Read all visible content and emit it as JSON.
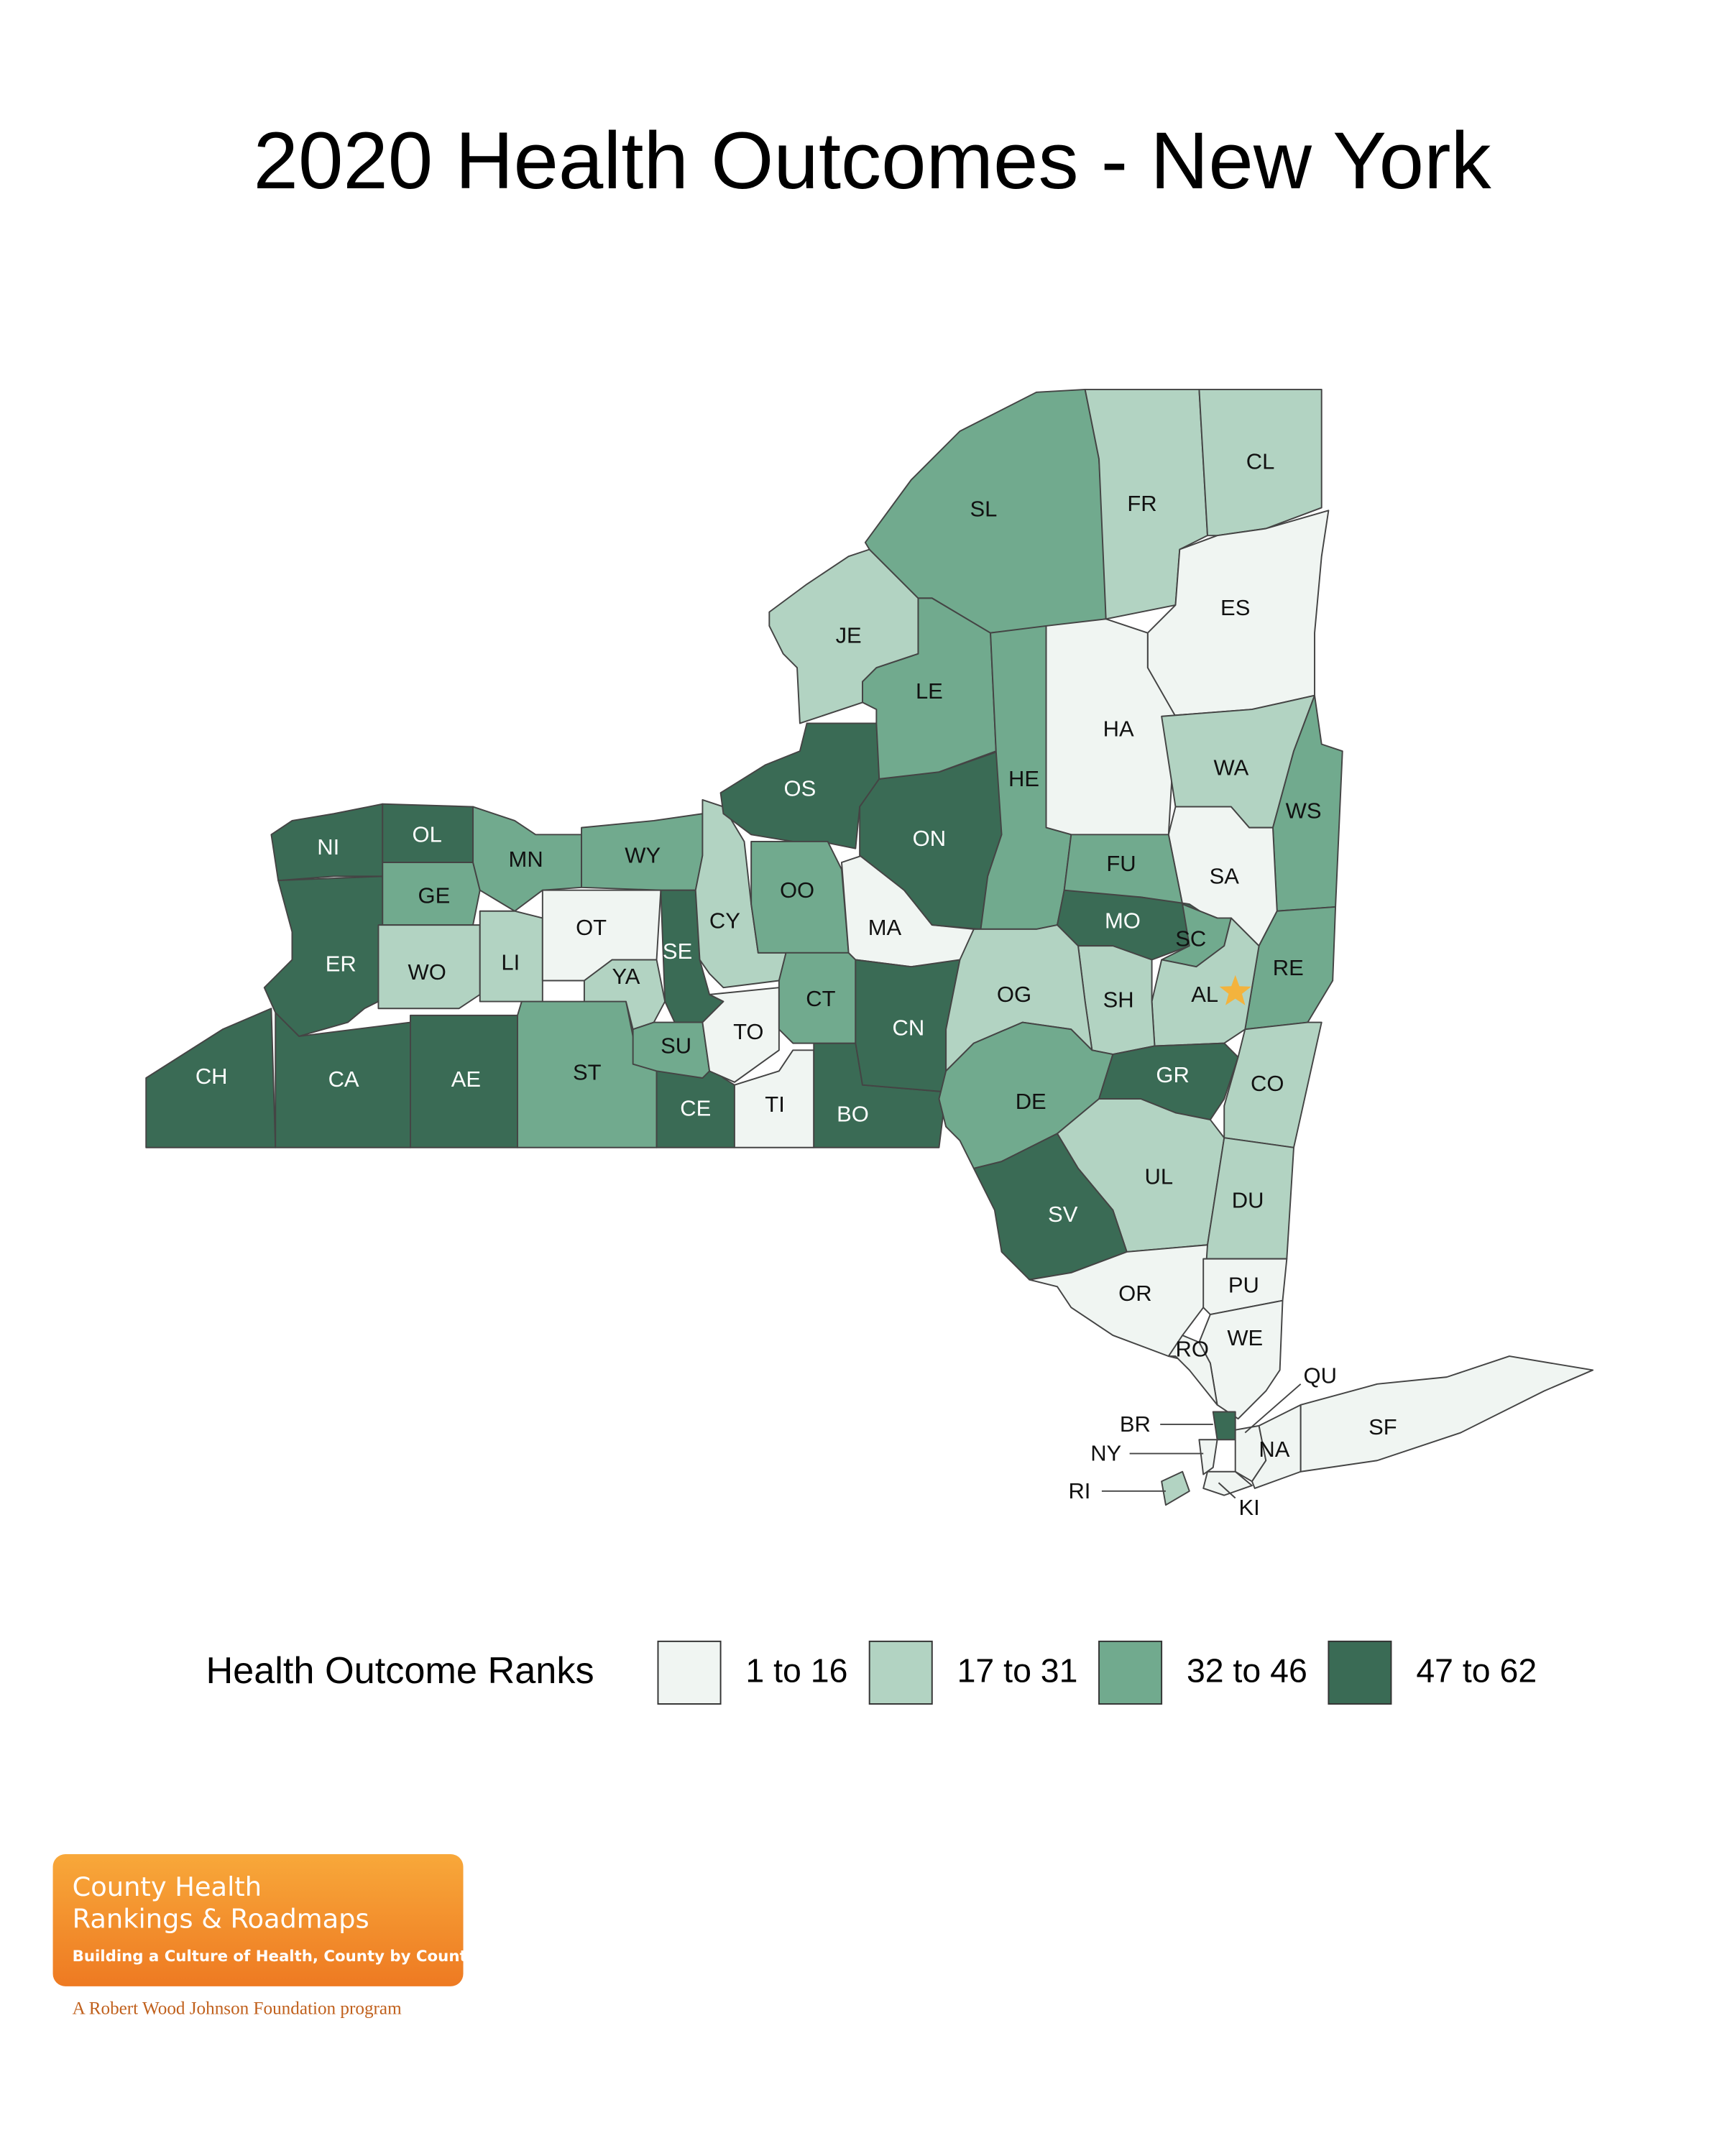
{
  "title": "2020 Health Outcomes - New York",
  "legend": {
    "title": "Health Outcome Ranks",
    "bins": [
      {
        "label": "1 to 16",
        "color": "#f0f5f2"
      },
      {
        "label": "17 to 31",
        "color": "#b2d3c2"
      },
      {
        "label": "32 to 46",
        "color": "#71aa8e"
      },
      {
        "label": "47 to 62",
        "color": "#3a6b55"
      }
    ]
  },
  "counties": [
    {
      "label": "CH",
      "bin": 3
    },
    {
      "label": "CA",
      "bin": 3
    },
    {
      "label": "AE",
      "bin": 3
    },
    {
      "label": "ST",
      "bin": 2
    },
    {
      "label": "CE",
      "bin": 3
    },
    {
      "label": "TI",
      "bin": 0
    },
    {
      "label": "BO",
      "bin": 3
    },
    {
      "label": "NI",
      "bin": 3
    },
    {
      "label": "OL",
      "bin": 3
    },
    {
      "label": "ER",
      "bin": 3
    },
    {
      "label": "GE",
      "bin": 2
    },
    {
      "label": "WO",
      "bin": 1
    },
    {
      "label": "MN",
      "bin": 2
    },
    {
      "label": "LI",
      "bin": 1
    },
    {
      "label": "WY",
      "bin": 2
    },
    {
      "label": "OT",
      "bin": 0
    },
    {
      "label": "YA",
      "bin": 1
    },
    {
      "label": "SE",
      "bin": 3
    },
    {
      "label": "SU",
      "bin": 2
    },
    {
      "label": "CY",
      "bin": 1
    },
    {
      "label": "TO",
      "bin": 0
    },
    {
      "label": "OS",
      "bin": 3
    },
    {
      "label": "OO",
      "bin": 2
    },
    {
      "label": "CT",
      "bin": 2
    },
    {
      "label": "MA",
      "bin": 0
    },
    {
      "label": "ON",
      "bin": 3
    },
    {
      "label": "CN",
      "bin": 3
    },
    {
      "label": "LE",
      "bin": 2
    },
    {
      "label": "JE",
      "bin": 1
    },
    {
      "label": "SL",
      "bin": 2
    },
    {
      "label": "FR",
      "bin": 1
    },
    {
      "label": "CL",
      "bin": 1
    },
    {
      "label": "ES",
      "bin": 0
    },
    {
      "label": "HA",
      "bin": 0
    },
    {
      "label": "HE",
      "bin": 2
    },
    {
      "label": "WA",
      "bin": 1
    },
    {
      "label": "WS",
      "bin": 2
    },
    {
      "label": "SA",
      "bin": 0
    },
    {
      "label": "FU",
      "bin": 2
    },
    {
      "label": "MO",
      "bin": 3
    },
    {
      "label": "SC",
      "bin": 2
    },
    {
      "label": "RE",
      "bin": 2
    },
    {
      "label": "AL",
      "bin": 1
    },
    {
      "label": "SH",
      "bin": 1
    },
    {
      "label": "OG",
      "bin": 1
    },
    {
      "label": "DE",
      "bin": 2
    },
    {
      "label": "GR",
      "bin": 3
    },
    {
      "label": "CO",
      "bin": 1
    },
    {
      "label": "UL",
      "bin": 1
    },
    {
      "label": "DU",
      "bin": 1
    },
    {
      "label": "SV",
      "bin": 3
    },
    {
      "label": "OR",
      "bin": 0
    },
    {
      "label": "PU",
      "bin": 0
    },
    {
      "label": "WE",
      "bin": 0
    },
    {
      "label": "RO",
      "bin": 0
    },
    {
      "label": "BR",
      "bin": 3
    },
    {
      "label": "NY",
      "bin": 0
    },
    {
      "label": "QU",
      "bin": 0
    },
    {
      "label": "KI",
      "bin": 0
    },
    {
      "label": "RI",
      "bin": 1
    },
    {
      "label": "NA",
      "bin": 0
    },
    {
      "label": "SF",
      "bin": 0
    }
  ],
  "logo": {
    "line1": "County Health",
    "line2": "Rankings & Roadmaps",
    "tagline": "Building a Culture of Health, County by County",
    "footer": "A Robert Wood Johnson Foundation program"
  }
}
